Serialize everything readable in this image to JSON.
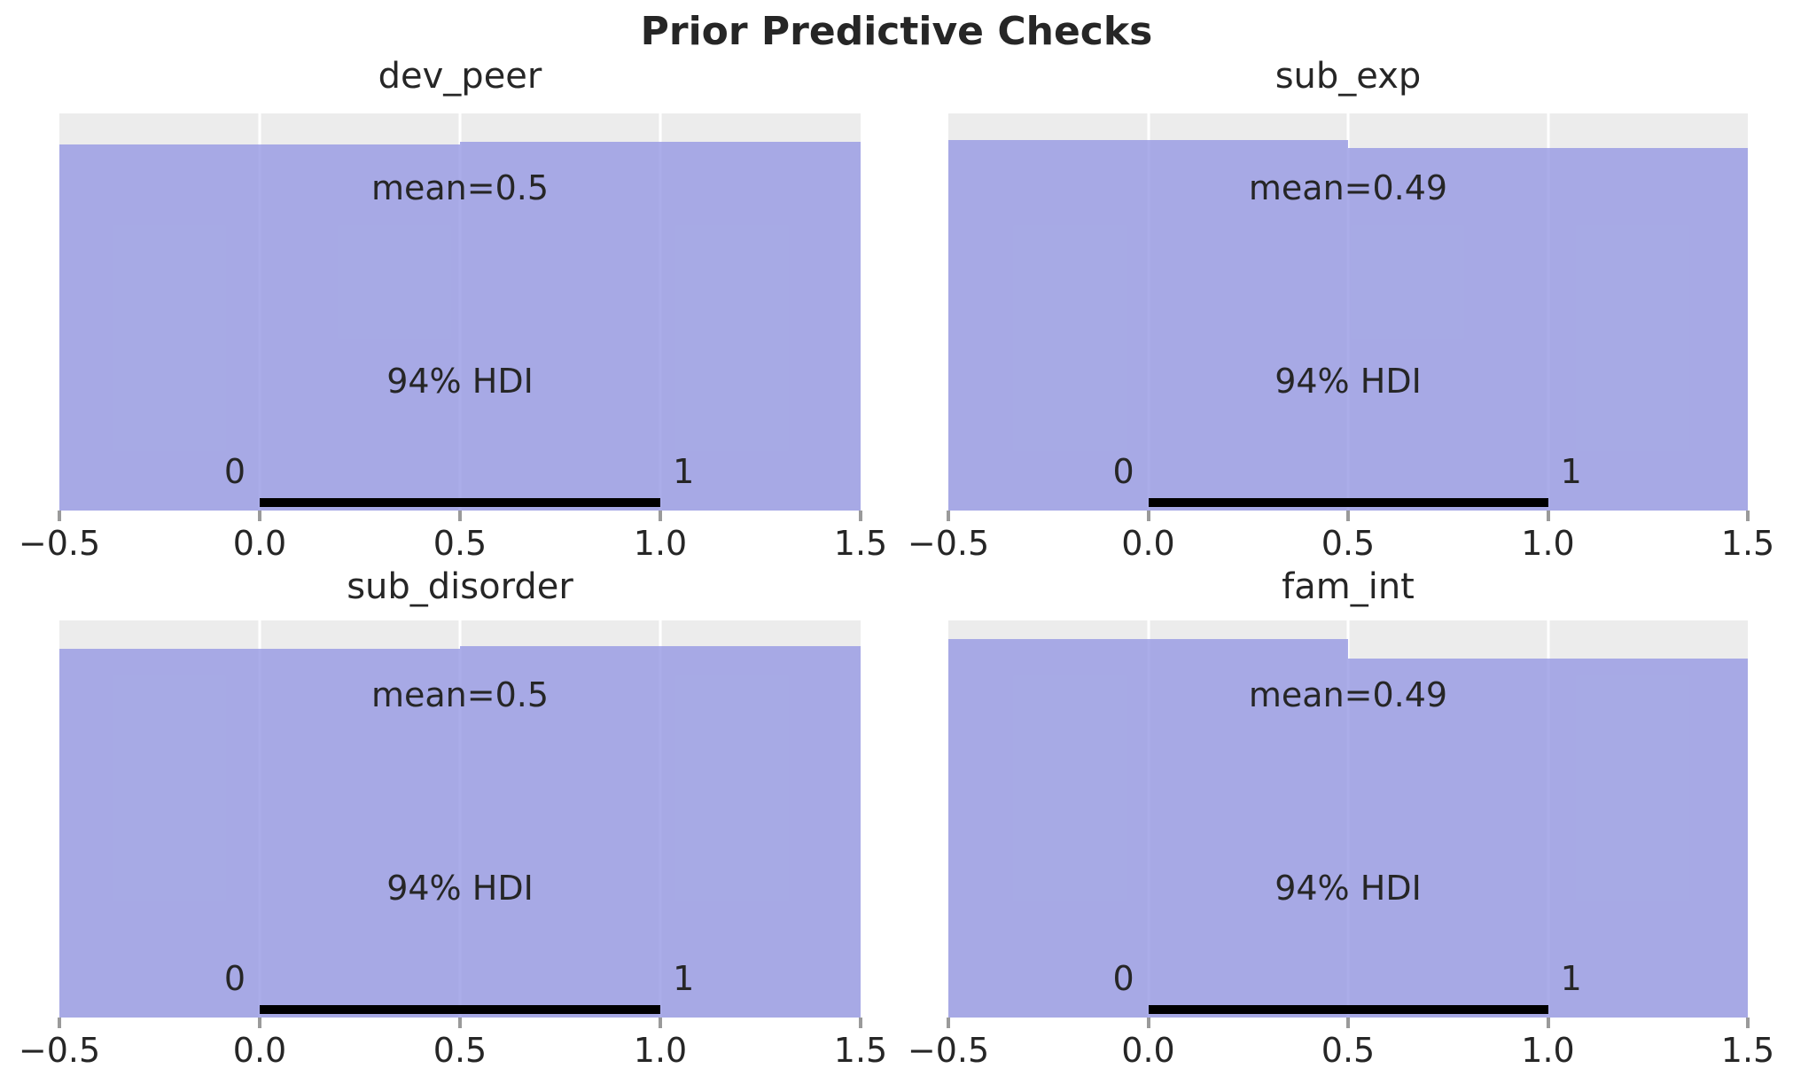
{
  "chart_data": {
    "type": "bar",
    "suptitle": "Prior Predictive Checks",
    "hdi_label": "94% HDI",
    "x_ticks": [
      "−0.5",
      "0.0",
      "0.5",
      "1.0",
      "1.5"
    ],
    "x_range": [
      -0.5,
      1.5
    ],
    "grid": "on",
    "legend": "none",
    "layout": "2x2",
    "colors": {
      "bar": "#a8abe4",
      "plot_background": "#ececec",
      "gridline": "#ffffff",
      "hdi_line": "#000000",
      "text": "#262626",
      "figure_background": "#ffffff"
    },
    "plots": [
      {
        "title": "dev_peer",
        "mean": 0.5,
        "mean_label": "mean=0.5",
        "hdi": [
          0,
          1
        ],
        "hdi_lo_label": "0",
        "hdi_hi_label": "1",
        "bars": [
          {
            "x0": -0.5,
            "x1": 0.5,
            "value": 0,
            "rel_height": 0.922,
            "css_height": "92.2%"
          },
          {
            "x0": 0.5,
            "x1": 1.5,
            "value": 1,
            "rel_height": 0.929,
            "css_height": "92.9%"
          }
        ]
      },
      {
        "title": "sub_exp",
        "mean": 0.49,
        "mean_label": "mean=0.49",
        "hdi": [
          0,
          1
        ],
        "hdi_lo_label": "0",
        "hdi_hi_label": "1",
        "bars": [
          {
            "x0": -0.5,
            "x1": 0.5,
            "value": 0,
            "rel_height": 0.933,
            "css_height": "93.3%"
          },
          {
            "x0": 0.5,
            "x1": 1.5,
            "value": 1,
            "rel_height": 0.913,
            "css_height": "91.3%"
          }
        ]
      },
      {
        "title": "sub_disorder",
        "mean": 0.5,
        "mean_label": "mean=0.5",
        "hdi": [
          0,
          1
        ],
        "hdi_lo_label": "0",
        "hdi_hi_label": "1",
        "bars": [
          {
            "x0": -0.5,
            "x1": 0.5,
            "value": 0,
            "rel_height": 0.929,
            "css_height": "92.9%"
          },
          {
            "x0": 0.5,
            "x1": 1.5,
            "value": 1,
            "rel_height": 0.935,
            "css_height": "93.5%"
          }
        ]
      },
      {
        "title": "fam_int",
        "mean": 0.49,
        "mean_label": "mean=0.49",
        "hdi": [
          0,
          1
        ],
        "hdi_lo_label": "0",
        "hdi_hi_label": "1",
        "bars": [
          {
            "x0": -0.5,
            "x1": 0.5,
            "value": 0,
            "rel_height": 0.953,
            "css_height": "95.3%"
          },
          {
            "x0": 0.5,
            "x1": 1.5,
            "value": 1,
            "rel_height": 0.904,
            "css_height": "90.4%"
          }
        ]
      }
    ]
  }
}
